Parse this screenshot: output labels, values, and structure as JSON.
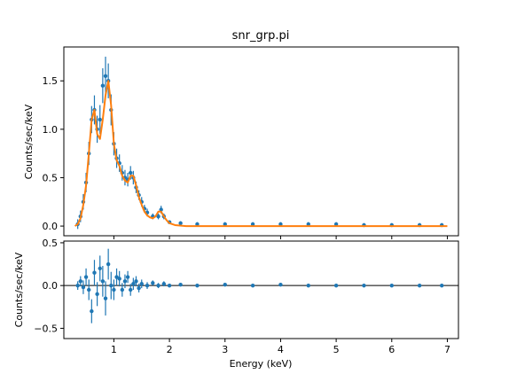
{
  "chart_data": [
    {
      "type": "scatter",
      "panel": "spectrum",
      "title": "snr_grp.pi",
      "xlabel": "",
      "ylabel": "Counts/sec/keV",
      "xlim": [
        0.1,
        7.2
      ],
      "ylim": [
        -0.1,
        1.85
      ],
      "xticks": [
        1,
        2,
        3,
        4,
        5,
        6,
        7
      ],
      "yticks": [
        0.0,
        0.5,
        1.0,
        1.5
      ],
      "ytick_labels": [
        "0.0",
        "0.5",
        "1.0",
        "1.5"
      ],
      "grid": false,
      "colors": {
        "data": "#1f77b4",
        "model": "#ff7f0e"
      },
      "series": [
        {
          "kind": "data_with_errorbars",
          "x": [
            0.35,
            0.4,
            0.45,
            0.5,
            0.55,
            0.6,
            0.65,
            0.7,
            0.75,
            0.8,
            0.85,
            0.9,
            0.95,
            1.0,
            1.05,
            1.1,
            1.15,
            1.2,
            1.25,
            1.3,
            1.35,
            1.4,
            1.45,
            1.5,
            1.55,
            1.6,
            1.7,
            1.8,
            1.85,
            1.9,
            2.0,
            2.2,
            2.5,
            3.0,
            3.5,
            4.0,
            4.5,
            5.0,
            5.5,
            6.0,
            6.5,
            6.9
          ],
          "y": [
            0.02,
            0.1,
            0.25,
            0.45,
            0.75,
            1.1,
            1.2,
            1.0,
            1.1,
            1.45,
            1.55,
            1.5,
            1.2,
            0.85,
            0.7,
            0.65,
            0.55,
            0.5,
            0.48,
            0.55,
            0.5,
            0.4,
            0.32,
            0.25,
            0.18,
            0.14,
            0.1,
            0.1,
            0.17,
            0.1,
            0.04,
            0.03,
            0.02,
            0.02,
            0.02,
            0.02,
            0.02,
            0.02,
            0.01,
            0.01,
            0.01,
            0.01
          ],
          "yerr": [
            0.05,
            0.06,
            0.08,
            0.1,
            0.12,
            0.14,
            0.15,
            0.14,
            0.15,
            0.18,
            0.2,
            0.18,
            0.16,
            0.12,
            0.1,
            0.09,
            0.08,
            0.08,
            0.07,
            0.07,
            0.07,
            0.06,
            0.05,
            0.05,
            0.04,
            0.04,
            0.03,
            0.03,
            0.04,
            0.03,
            0.02,
            0.02,
            0.02,
            0.02,
            0.02,
            0.02,
            0.02,
            0.02,
            0.02,
            0.02,
            0.02,
            0.02
          ]
        },
        {
          "kind": "model",
          "x": [
            0.3,
            0.35,
            0.4,
            0.45,
            0.5,
            0.55,
            0.6,
            0.65,
            0.7,
            0.75,
            0.8,
            0.85,
            0.9,
            0.95,
            1.0,
            1.05,
            1.1,
            1.15,
            1.2,
            1.25,
            1.3,
            1.35,
            1.4,
            1.45,
            1.5,
            1.55,
            1.6,
            1.65,
            1.7,
            1.75,
            1.8,
            1.85,
            1.9,
            1.95,
            2.0,
            2.1,
            2.3,
            2.6,
            3.0,
            4.0,
            5.0,
            6.0,
            7.0
          ],
          "y": [
            0.0,
            0.02,
            0.08,
            0.22,
            0.42,
            0.75,
            1.1,
            1.2,
            0.95,
            0.9,
            1.1,
            1.35,
            1.5,
            1.25,
            0.85,
            0.68,
            0.62,
            0.52,
            0.47,
            0.45,
            0.52,
            0.52,
            0.42,
            0.3,
            0.22,
            0.15,
            0.11,
            0.09,
            0.08,
            0.1,
            0.15,
            0.15,
            0.1,
            0.06,
            0.03,
            0.01,
            0.0,
            0.0,
            0.0,
            0.0,
            0.0,
            0.0,
            0.0
          ]
        }
      ]
    },
    {
      "type": "scatter",
      "panel": "residuals",
      "title": "",
      "xlabel": "Energy (keV)",
      "ylabel": "Counts/sec/keV",
      "xlim": [
        0.1,
        7.2
      ],
      "ylim": [
        -0.62,
        0.52
      ],
      "xticks": [
        1,
        2,
        3,
        4,
        5,
        6,
        7
      ],
      "xtick_labels": [
        "1",
        "2",
        "3",
        "4",
        "5",
        "6",
        "7"
      ],
      "yticks": [
        -0.5,
        0.0,
        0.5
      ],
      "ytick_labels": [
        "−0.5",
        "0.0",
        "0.5"
      ],
      "reference_line": 0.0,
      "grid": false,
      "colors": {
        "data": "#1f77b4",
        "zero_line": "#000000"
      },
      "series": [
        {
          "kind": "residuals_with_errorbars",
          "x": [
            0.35,
            0.4,
            0.45,
            0.5,
            0.55,
            0.6,
            0.65,
            0.7,
            0.75,
            0.8,
            0.85,
            0.9,
            0.95,
            1.0,
            1.05,
            1.1,
            1.15,
            1.2,
            1.25,
            1.3,
            1.35,
            1.4,
            1.45,
            1.5,
            1.6,
            1.7,
            1.8,
            1.9,
            2.0,
            2.2,
            2.5,
            3.0,
            3.5,
            4.0,
            4.5,
            5.0,
            5.5,
            6.0,
            6.5,
            6.9
          ],
          "y": [
            0.0,
            0.05,
            -0.02,
            0.1,
            -0.05,
            -0.3,
            0.15,
            -0.1,
            0.2,
            0.05,
            -0.15,
            0.25,
            0.0,
            -0.05,
            0.1,
            0.08,
            -0.05,
            0.05,
            0.1,
            -0.05,
            0.02,
            0.05,
            -0.03,
            0.02,
            0.0,
            0.03,
            0.0,
            0.02,
            0.0,
            0.01,
            0.0,
            0.01,
            0.0,
            0.01,
            0.0,
            0.0,
            0.0,
            0.0,
            0.0,
            0.0
          ],
          "yerr": [
            0.05,
            0.06,
            0.08,
            0.1,
            0.12,
            0.14,
            0.15,
            0.14,
            0.15,
            0.18,
            0.2,
            0.18,
            0.16,
            0.12,
            0.1,
            0.09,
            0.08,
            0.08,
            0.07,
            0.07,
            0.07,
            0.06,
            0.05,
            0.05,
            0.04,
            0.03,
            0.03,
            0.03,
            0.02,
            0.02,
            0.02,
            0.02,
            0.02,
            0.02,
            0.02,
            0.02,
            0.02,
            0.02,
            0.02,
            0.02
          ]
        }
      ]
    }
  ]
}
